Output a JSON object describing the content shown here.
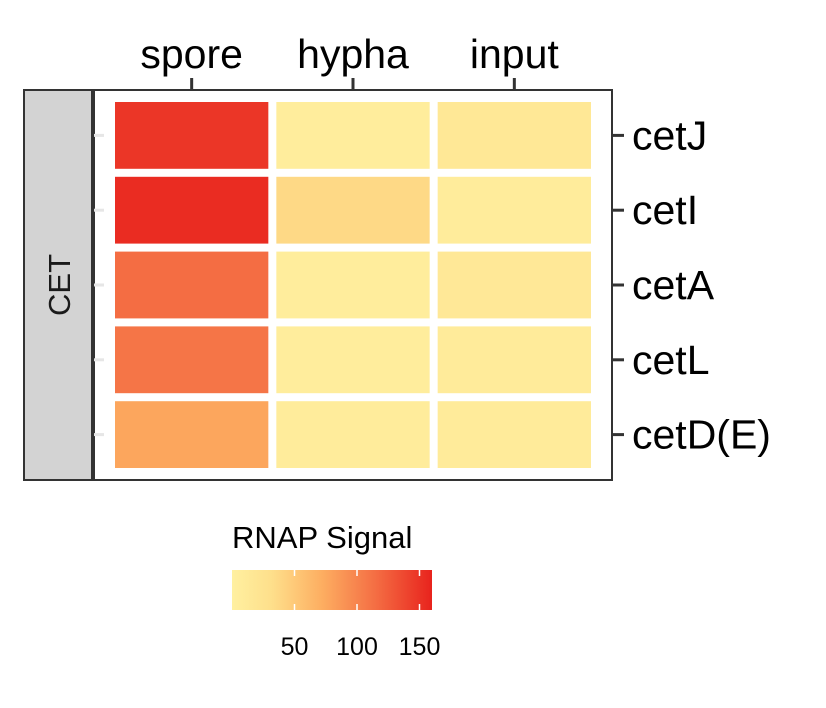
{
  "chart_data": {
    "type": "heatmap",
    "columns": [
      "spore",
      "hypha",
      "input"
    ],
    "rows": [
      "cetJ",
      "cetI",
      "cetA",
      "cetL",
      "cetD(E)"
    ],
    "facet": "CET",
    "values": [
      [
        150,
        8,
        20
      ],
      [
        155,
        45,
        10
      ],
      [
        120,
        8,
        18
      ],
      [
        115,
        8,
        12
      ],
      [
        85,
        10,
        12
      ]
    ],
    "legend": {
      "title": "RNAP Signal",
      "ticks": [
        50,
        100,
        150
      ],
      "tick_labels": [
        "50",
        "100",
        "150"
      ],
      "range": [
        0,
        160
      ]
    },
    "colors": [
      "#fff0a0",
      "#fedf8b",
      "#fdae61",
      "#f46d43",
      "#e8231d"
    ]
  }
}
